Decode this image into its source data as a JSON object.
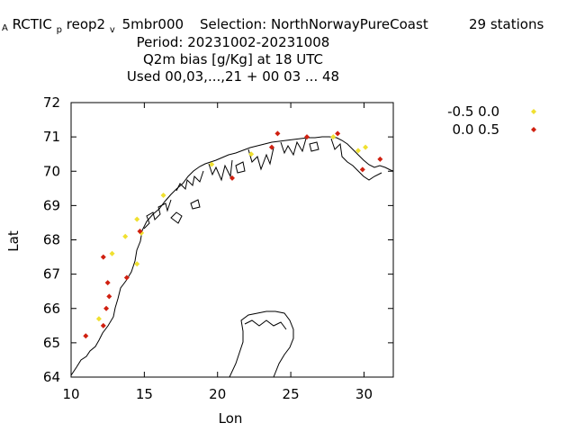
{
  "chart_data": {
    "type": "scatter",
    "title": {
      "line1": {
        "prefix": "A",
        "name": "RCTIC",
        "sub_p": "p",
        "mid": "reop2",
        "sub_v": "v",
        "exp": "5mbr000",
        "selection": "Selection: NorthNorwayPureCoast",
        "stations": "29 stations"
      },
      "line2": "Period: 20231002-20231008",
      "line3": "Q2m bias [g/Kg] at  18 UTC",
      "line4": "Used  00,03,...,21  + 00 03 ... 48"
    },
    "xlabel": "Lon",
    "ylabel": "Lat",
    "xlim": [
      10,
      32
    ],
    "ylim": [
      64,
      72
    ],
    "xticks": [
      "10",
      "15",
      "20",
      "25",
      "30"
    ],
    "yticks": [
      "64",
      "65",
      "66",
      "67",
      "68",
      "69",
      "70",
      "71",
      "72"
    ],
    "legend_position": "top-right, outside plot",
    "series": [
      {
        "name": "-0.5 0.0",
        "color": "#f0e030",
        "points": [
          [
            11.9,
            65.7
          ],
          [
            12.8,
            67.6
          ],
          [
            13.7,
            68.1
          ],
          [
            14.5,
            67.3
          ],
          [
            14.5,
            68.6
          ],
          [
            14.8,
            68.2
          ],
          [
            16.3,
            69.3
          ],
          [
            19.6,
            70.2
          ],
          [
            22.3,
            70.5
          ],
          [
            27.9,
            71.0
          ],
          [
            29.6,
            70.6
          ],
          [
            30.1,
            70.7
          ]
        ]
      },
      {
        "name": "0.0 0.5",
        "color": "#d02010",
        "points": [
          [
            11.0,
            65.2
          ],
          [
            12.2,
            65.5
          ],
          [
            12.4,
            66.0
          ],
          [
            12.6,
            66.35
          ],
          [
            12.5,
            66.75
          ],
          [
            12.2,
            67.5
          ],
          [
            13.8,
            66.9
          ],
          [
            14.7,
            68.25
          ],
          [
            21.0,
            69.8
          ],
          [
            23.7,
            70.7
          ],
          [
            24.1,
            71.1
          ],
          [
            26.1,
            71.0
          ],
          [
            28.2,
            71.1
          ],
          [
            29.9,
            70.05
          ],
          [
            31.1,
            70.35
          ]
        ]
      }
    ]
  }
}
